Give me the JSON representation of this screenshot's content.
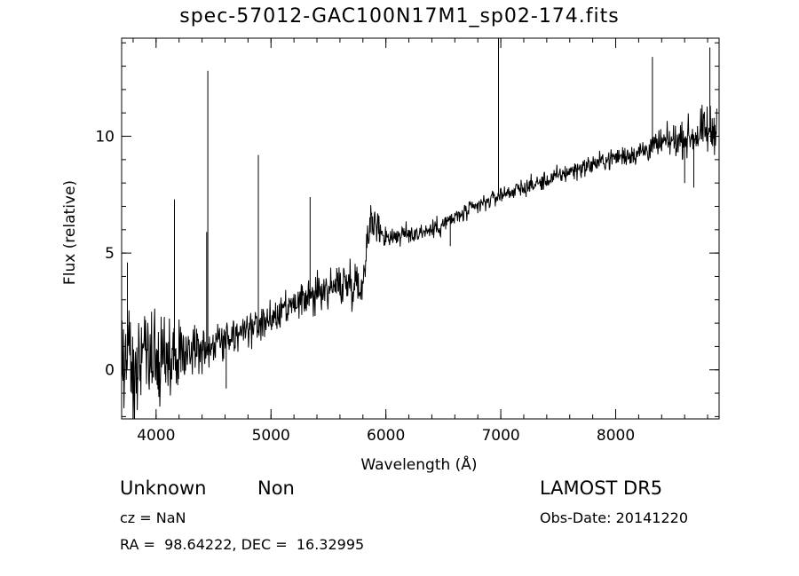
{
  "chart_data": {
    "type": "line",
    "title": "spec-57012-GAC100N17M1_sp02-174.fits",
    "xlabel": "Wavelength (Å)",
    "ylabel": "Flux (relative)",
    "xlim": [
      3700,
      8900
    ],
    "ylim": [
      -2.1,
      14.2
    ],
    "xticks": [
      4000,
      5000,
      6000,
      7000,
      8000
    ],
    "yticks": [
      0,
      5,
      10
    ],
    "x_minor_step": 200,
    "y_minor_step": 1,
    "grid": false,
    "color": "#000000",
    "continuum": [
      [
        3700,
        0.4
      ],
      [
        3900,
        0.3
      ],
      [
        4100,
        0.6
      ],
      [
        4300,
        0.9
      ],
      [
        4500,
        1.1
      ],
      [
        4700,
        1.5
      ],
      [
        4900,
        1.9
      ],
      [
        5100,
        2.4
      ],
      [
        5300,
        3.0
      ],
      [
        5500,
        3.5
      ],
      [
        5700,
        3.8
      ],
      [
        5800,
        3.6
      ],
      [
        5850,
        6.4
      ],
      [
        5950,
        6.0
      ],
      [
        6000,
        5.7
      ],
      [
        6200,
        5.8
      ],
      [
        6400,
        6.0
      ],
      [
        6600,
        6.5
      ],
      [
        6800,
        7.0
      ],
      [
        7000,
        7.5
      ],
      [
        7200,
        7.8
      ],
      [
        7400,
        8.1
      ],
      [
        7600,
        8.5
      ],
      [
        7800,
        8.8
      ],
      [
        8000,
        9.1
      ],
      [
        8200,
        9.3
      ],
      [
        8400,
        9.7
      ],
      [
        8600,
        9.9
      ],
      [
        8800,
        10.2
      ],
      [
        8880,
        10.2
      ]
    ],
    "noise": [
      [
        3700,
        1.2
      ],
      [
        4000,
        0.9
      ],
      [
        4200,
        0.7
      ],
      [
        4500,
        0.45
      ],
      [
        5000,
        0.35
      ],
      [
        5500,
        0.45
      ],
      [
        5850,
        0.5
      ],
      [
        6000,
        0.25
      ],
      [
        7000,
        0.18
      ],
      [
        8000,
        0.22
      ],
      [
        8600,
        0.35
      ],
      [
        8880,
        0.6
      ]
    ],
    "features": [
      {
        "x": 3750,
        "y": 4.6
      },
      {
        "x": 4160,
        "y": 7.3
      },
      {
        "x": 4450,
        "y": 12.8
      },
      {
        "x": 4440,
        "y": 5.9
      },
      {
        "x": 4610,
        "y": -0.8
      },
      {
        "x": 4890,
        "y": 9.2
      },
      {
        "x": 5340,
        "y": 7.4
      },
      {
        "x": 6560,
        "y": 5.3
      },
      {
        "x": 6980,
        "y": 14.2
      },
      {
        "x": 8320,
        "y": 13.4
      },
      {
        "x": 8600,
        "y": 8.0
      },
      {
        "x": 8680,
        "y": 7.8
      },
      {
        "x": 8820,
        "y": 13.8
      }
    ]
  },
  "labels": {
    "obj_class": "Unknown",
    "obj_subclass": "Non",
    "survey": "LAMOST DR5",
    "cz": "cz = NaN",
    "obs_date": "Obs-Date: 20141220",
    "radec": "RA =  98.64222, DEC =  16.32995"
  }
}
